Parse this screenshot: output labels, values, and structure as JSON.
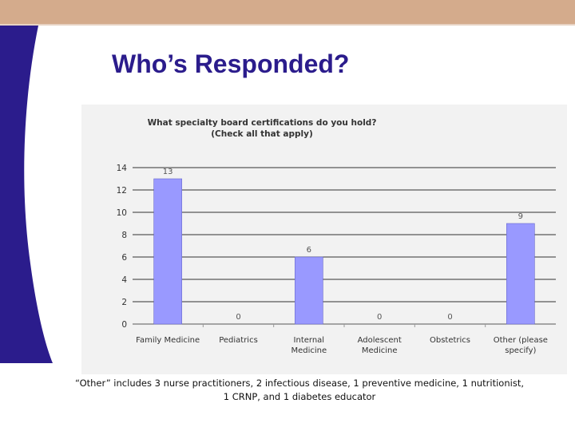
{
  "slide": {
    "title": "Who’s Responded?",
    "footnote_line1": "“Other” includes 3 nurse practitioners, 2 infectious disease, 1 preventive medicine, 1 nutritionist,",
    "footnote_line2": "1 CRNP, and 1 diabetes educator",
    "colors": {
      "title": "#2b1c8c",
      "band": "#2b1c8c",
      "topbar": "#d4ab8c"
    }
  },
  "chart_data": {
    "type": "bar",
    "title_lines": [
      "What specialty board certifications do you hold?",
      "(Check all that apply)"
    ],
    "categories": [
      [
        "Family Medicine"
      ],
      [
        "Pediatrics"
      ],
      [
        "Internal",
        "Medicine"
      ],
      [
        "Adolescent",
        "Medicine"
      ],
      [
        "Obstetrics"
      ],
      [
        "Other (please",
        "specify)"
      ]
    ],
    "values": [
      13,
      0,
      6,
      0,
      0,
      9
    ],
    "ylim": [
      0,
      14
    ],
    "yticks": [
      0,
      2,
      4,
      6,
      8,
      10,
      12,
      14
    ],
    "grid": true,
    "bar_color": "#9999ff"
  }
}
